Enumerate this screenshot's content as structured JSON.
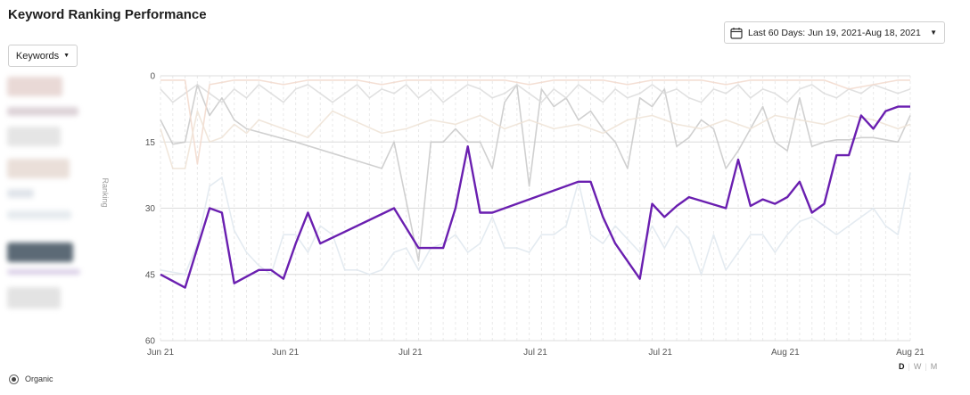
{
  "page": {
    "title": "Keyword Ranking Performance"
  },
  "date_range": {
    "label": "Last 60 Days: Jun 19, 2021-Aug 18, 2021",
    "icon": "calendar-icon"
  },
  "keywords_dropdown": {
    "label": "Keywords"
  },
  "legend": {
    "blurred_items": 9
  },
  "granularity": {
    "options": [
      "D",
      "W",
      "M"
    ],
    "active": "D"
  },
  "footer": {
    "organic_label": "Organic"
  },
  "colors": {
    "highlight_series": "#6a1fb0",
    "grid": "#e6e6e6",
    "axis_text": "#666666"
  },
  "chart_data": {
    "type": "line",
    "ylabel": "Ranking",
    "y_reversed": true,
    "ylim": [
      0,
      60
    ],
    "y_ticks": [
      0,
      15,
      30,
      45,
      60
    ],
    "x_tick_labels": [
      "Jun 21",
      "Jun 21",
      "Jul 21",
      "Jul 21",
      "Jul 21",
      "Aug 21",
      "Aug 21"
    ],
    "x_count": 61,
    "series": [
      {
        "highlight": true,
        "color": "#6a1fb0",
        "points": [
          [
            0,
            45
          ],
          [
            2,
            48
          ],
          [
            4,
            30
          ],
          [
            5,
            31
          ],
          [
            6,
            47
          ],
          [
            8,
            44
          ],
          [
            9,
            44
          ],
          [
            10,
            46
          ],
          [
            11,
            38
          ],
          [
            12,
            31
          ],
          [
            13,
            38
          ],
          [
            19,
            30
          ],
          [
            21,
            39
          ],
          [
            23,
            39
          ],
          [
            24,
            30
          ],
          [
            25,
            16
          ],
          [
            26,
            31
          ],
          [
            27,
            31
          ],
          [
            34,
            24
          ],
          [
            35,
            24
          ],
          [
            36,
            32
          ],
          [
            37,
            38
          ],
          [
            39,
            46
          ],
          [
            40,
            29
          ],
          [
            41,
            32
          ],
          [
            42,
            29.5
          ],
          [
            43,
            27.5
          ],
          [
            46,
            30
          ],
          [
            47,
            19
          ],
          [
            48,
            29.5
          ],
          [
            49,
            28
          ],
          [
            50,
            29
          ],
          [
            51,
            27.5
          ],
          [
            52,
            24
          ],
          [
            53,
            31
          ],
          [
            54,
            29
          ],
          [
            55,
            18
          ],
          [
            56,
            18
          ],
          [
            57,
            9
          ],
          [
            58,
            12
          ],
          [
            59,
            8
          ],
          [
            60,
            7
          ],
          [
            61,
            7
          ]
        ]
      },
      {
        "color": "#c8c8c8",
        "points": [
          [
            0,
            10
          ],
          [
            1,
            15.5
          ],
          [
            2,
            15
          ],
          [
            3,
            2
          ],
          [
            4,
            9
          ],
          [
            5,
            5
          ],
          [
            6,
            10
          ],
          [
            7,
            12
          ],
          [
            11,
            15
          ],
          [
            18,
            21
          ],
          [
            19,
            15
          ],
          [
            21,
            42
          ],
          [
            22,
            15
          ],
          [
            23,
            15
          ],
          [
            24,
            12
          ],
          [
            25,
            15
          ],
          [
            26,
            15
          ],
          [
            27,
            21
          ],
          [
            28,
            6
          ],
          [
            29,
            2
          ],
          [
            30,
            25
          ],
          [
            31,
            3
          ],
          [
            32,
            7
          ],
          [
            33,
            5
          ],
          [
            34,
            10
          ],
          [
            35,
            8
          ],
          [
            36,
            12
          ],
          [
            37,
            15
          ],
          [
            38,
            21
          ],
          [
            39,
            5
          ],
          [
            40,
            7
          ],
          [
            41,
            3
          ],
          [
            42,
            16
          ],
          [
            43,
            14
          ],
          [
            44,
            10
          ],
          [
            45,
            12
          ],
          [
            46,
            21
          ],
          [
            47,
            17
          ],
          [
            48,
            12
          ],
          [
            49,
            7
          ],
          [
            50,
            15
          ],
          [
            51,
            17
          ],
          [
            52,
            5
          ],
          [
            53,
            16
          ],
          [
            54,
            15
          ],
          [
            55,
            14.5
          ],
          [
            56,
            14.5
          ],
          [
            57,
            14
          ],
          [
            58,
            14
          ],
          [
            59,
            14.5
          ],
          [
            60,
            15
          ],
          [
            61,
            9
          ]
        ]
      },
      {
        "color": "#dcdcdc",
        "points": [
          [
            0,
            3
          ],
          [
            1,
            6
          ],
          [
            2,
            4
          ],
          [
            3,
            2
          ],
          [
            4,
            4
          ],
          [
            5,
            6
          ],
          [
            6,
            3
          ],
          [
            7,
            5
          ],
          [
            8,
            2
          ],
          [
            9,
            4
          ],
          [
            10,
            6
          ],
          [
            11,
            3
          ],
          [
            12,
            2
          ],
          [
            13,
            4
          ],
          [
            14,
            6
          ],
          [
            15,
            4
          ],
          [
            16,
            2
          ],
          [
            17,
            5
          ],
          [
            18,
            3
          ],
          [
            19,
            4
          ],
          [
            20,
            2
          ],
          [
            21,
            5
          ],
          [
            22,
            3
          ],
          [
            23,
            6
          ],
          [
            24,
            4
          ],
          [
            25,
            2
          ],
          [
            26,
            3
          ],
          [
            27,
            5
          ],
          [
            28,
            4
          ],
          [
            29,
            2
          ],
          [
            30,
            4
          ],
          [
            31,
            6
          ],
          [
            32,
            3
          ],
          [
            33,
            5
          ],
          [
            34,
            2
          ],
          [
            35,
            4
          ],
          [
            36,
            6
          ],
          [
            37,
            3
          ],
          [
            38,
            5
          ],
          [
            39,
            4
          ],
          [
            40,
            2
          ],
          [
            41,
            4
          ],
          [
            42,
            3
          ],
          [
            43,
            5
          ],
          [
            44,
            6
          ],
          [
            45,
            3
          ],
          [
            46,
            4
          ],
          [
            47,
            2
          ],
          [
            48,
            5
          ],
          [
            49,
            3
          ],
          [
            50,
            4
          ],
          [
            51,
            6
          ],
          [
            52,
            3
          ],
          [
            53,
            2
          ],
          [
            54,
            4
          ],
          [
            55,
            5
          ],
          [
            56,
            3
          ],
          [
            57,
            4
          ],
          [
            58,
            2
          ],
          [
            59,
            3
          ],
          [
            60,
            4
          ],
          [
            61,
            3
          ]
        ]
      },
      {
        "color": "#f2d9cc",
        "points": [
          [
            0,
            1
          ],
          [
            2,
            1
          ],
          [
            3,
            20
          ],
          [
            4,
            2
          ],
          [
            6,
            1
          ],
          [
            8,
            1
          ],
          [
            10,
            2
          ],
          [
            12,
            1
          ],
          [
            14,
            1
          ],
          [
            16,
            1
          ],
          [
            18,
            2
          ],
          [
            20,
            1
          ],
          [
            22,
            1
          ],
          [
            24,
            1
          ],
          [
            26,
            1
          ],
          [
            28,
            1
          ],
          [
            30,
            2
          ],
          [
            32,
            1
          ],
          [
            34,
            1
          ],
          [
            36,
            1
          ],
          [
            38,
            2
          ],
          [
            40,
            1
          ],
          [
            42,
            1
          ],
          [
            44,
            1
          ],
          [
            46,
            2
          ],
          [
            48,
            1
          ],
          [
            50,
            1
          ],
          [
            52,
            1
          ],
          [
            54,
            1
          ],
          [
            56,
            3
          ],
          [
            58,
            2
          ],
          [
            60,
            1
          ],
          [
            61,
            1
          ]
        ]
      },
      {
        "color": "#dfe8ee",
        "points": [
          [
            0,
            44
          ],
          [
            2,
            45
          ],
          [
            3,
            38
          ],
          [
            4,
            25
          ],
          [
            5,
            23
          ],
          [
            6,
            35
          ],
          [
            7,
            40
          ],
          [
            8,
            43
          ],
          [
            9,
            45
          ],
          [
            10,
            36
          ],
          [
            11,
            36
          ],
          [
            12,
            40
          ],
          [
            13,
            34
          ],
          [
            14,
            36
          ],
          [
            15,
            44
          ],
          [
            16,
            44
          ],
          [
            17,
            45
          ],
          [
            18,
            44
          ],
          [
            19,
            40
          ],
          [
            20,
            39
          ],
          [
            21,
            44
          ],
          [
            22,
            39
          ],
          [
            23,
            38
          ],
          [
            24,
            36
          ],
          [
            25,
            40
          ],
          [
            26,
            38
          ],
          [
            27,
            32
          ],
          [
            28,
            39
          ],
          [
            29,
            39
          ],
          [
            30,
            40
          ],
          [
            31,
            36
          ],
          [
            32,
            36
          ],
          [
            33,
            34
          ],
          [
            34,
            24
          ],
          [
            35,
            36
          ],
          [
            36,
            38
          ],
          [
            37,
            34
          ],
          [
            38,
            37
          ],
          [
            39,
            40
          ],
          [
            40,
            34
          ],
          [
            41,
            39
          ],
          [
            42,
            34
          ],
          [
            43,
            37
          ],
          [
            44,
            45
          ],
          [
            45,
            36
          ],
          [
            46,
            44
          ],
          [
            47,
            40
          ],
          [
            48,
            36
          ],
          [
            49,
            36
          ],
          [
            50,
            40
          ],
          [
            51,
            36
          ],
          [
            52,
            33
          ],
          [
            53,
            32
          ],
          [
            54,
            34
          ],
          [
            55,
            36
          ],
          [
            56,
            34
          ],
          [
            57,
            32
          ],
          [
            58,
            30
          ],
          [
            59,
            34
          ],
          [
            60,
            36
          ],
          [
            61,
            22
          ]
        ]
      },
      {
        "color": "#efe3d6",
        "points": [
          [
            0,
            12
          ],
          [
            1,
            21
          ],
          [
            2,
            21
          ],
          [
            3,
            8
          ],
          [
            4,
            15
          ],
          [
            5,
            14
          ],
          [
            6,
            11
          ],
          [
            7,
            13
          ],
          [
            8,
            10
          ],
          [
            12,
            14
          ],
          [
            14,
            8
          ],
          [
            18,
            13
          ],
          [
            20,
            12
          ],
          [
            22,
            10
          ],
          [
            24,
            11
          ],
          [
            26,
            9
          ],
          [
            28,
            12
          ],
          [
            30,
            10
          ],
          [
            32,
            12
          ],
          [
            34,
            11
          ],
          [
            36,
            13
          ],
          [
            38,
            10
          ],
          [
            40,
            9
          ],
          [
            42,
            11
          ],
          [
            44,
            12
          ],
          [
            46,
            10
          ],
          [
            48,
            12
          ],
          [
            50,
            9
          ],
          [
            52,
            10
          ],
          [
            54,
            11
          ],
          [
            56,
            9
          ],
          [
            58,
            10
          ],
          [
            60,
            12
          ],
          [
            61,
            11
          ]
        ]
      }
    ]
  }
}
